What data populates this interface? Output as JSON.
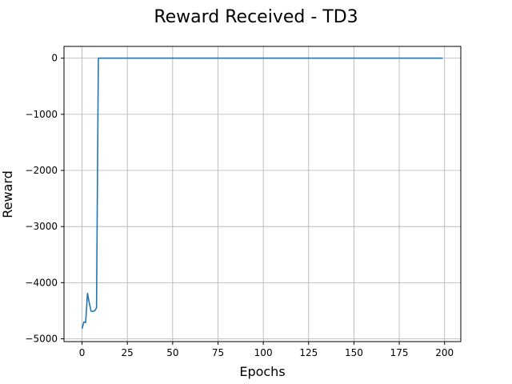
{
  "chart_data": {
    "type": "line",
    "title": "Reward Received - TD3",
    "xlabel": "Epochs",
    "ylabel": "Reward",
    "xlim": [
      -9.95,
      208.95
    ],
    "ylim": [
      -5050,
      210
    ],
    "xticks": [
      0,
      25,
      50,
      75,
      100,
      125,
      150,
      175,
      200
    ],
    "xtick_labels": [
      "0",
      "25",
      "50",
      "75",
      "100",
      "125",
      "150",
      "175",
      "200"
    ],
    "yticks": [
      0,
      -1000,
      -2000,
      -3000,
      -4000,
      -5000
    ],
    "ytick_labels": [
      "0",
      "−1000",
      "−2000",
      "−3000",
      "−4000",
      "−5000"
    ],
    "grid": true,
    "legend": false,
    "series": [
      {
        "color": "#1f77b4",
        "x": [
          0,
          1,
          2,
          3,
          4,
          5,
          6,
          7,
          8,
          9,
          199
        ],
        "y": [
          -4820,
          -4700,
          -4710,
          -4190,
          -4360,
          -4510,
          -4510,
          -4500,
          -4450,
          0,
          0
        ]
      }
    ]
  }
}
